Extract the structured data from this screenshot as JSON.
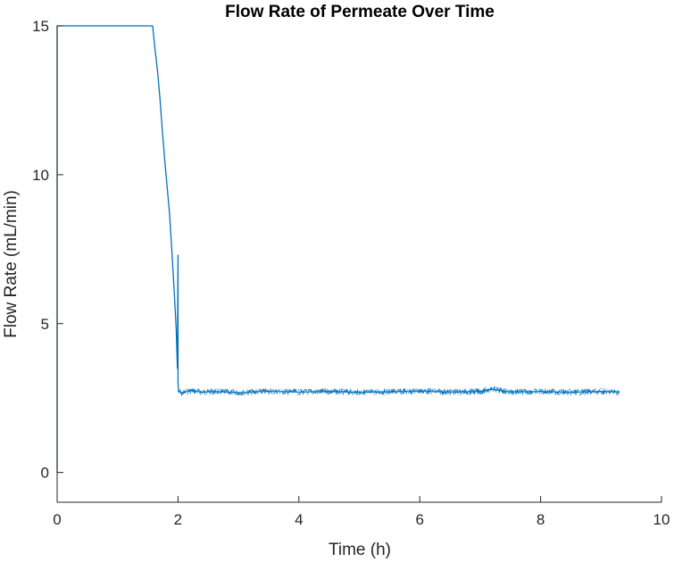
{
  "chart_data": {
    "type": "line",
    "title": "Flow Rate of Permeate Over Time",
    "xlabel": "Time (h)",
    "ylabel": "Flow Rate (mL/min)",
    "xlim": [
      0,
      10
    ],
    "ylim": [
      -1,
      15
    ],
    "xticks": [
      0,
      2,
      4,
      6,
      8,
      10
    ],
    "yticks": [
      0,
      5,
      10,
      15
    ],
    "grid": false,
    "color": "#0072BD",
    "series": [
      {
        "values_x": [
          0.0,
          0.0,
          0.0,
          1.58,
          1.62,
          1.66,
          1.7,
          1.74,
          1.78,
          1.82,
          1.86,
          1.9,
          1.94,
          1.97,
          1.99,
          2.0,
          2.0,
          2.01,
          2.02,
          2.05,
          2.2,
          2.4,
          2.6,
          3.0,
          3.5,
          4.0,
          4.5,
          5.0,
          5.5,
          6.0,
          6.5,
          7.0,
          7.2,
          7.5,
          8.0,
          8.5,
          9.0,
          9.3
        ],
        "values_y": [
          0.0,
          15.0,
          15.0,
          15.0,
          14.2,
          13.5,
          12.6,
          11.5,
          10.5,
          9.6,
          8.7,
          7.4,
          6.0,
          4.8,
          3.5,
          7.3,
          3.0,
          2.7,
          2.75,
          2.65,
          2.75,
          2.7,
          2.72,
          2.68,
          2.73,
          2.7,
          2.72,
          2.69,
          2.71,
          2.74,
          2.7,
          2.72,
          2.8,
          2.7,
          2.72,
          2.69,
          2.72,
          2.7
        ]
      }
    ]
  }
}
